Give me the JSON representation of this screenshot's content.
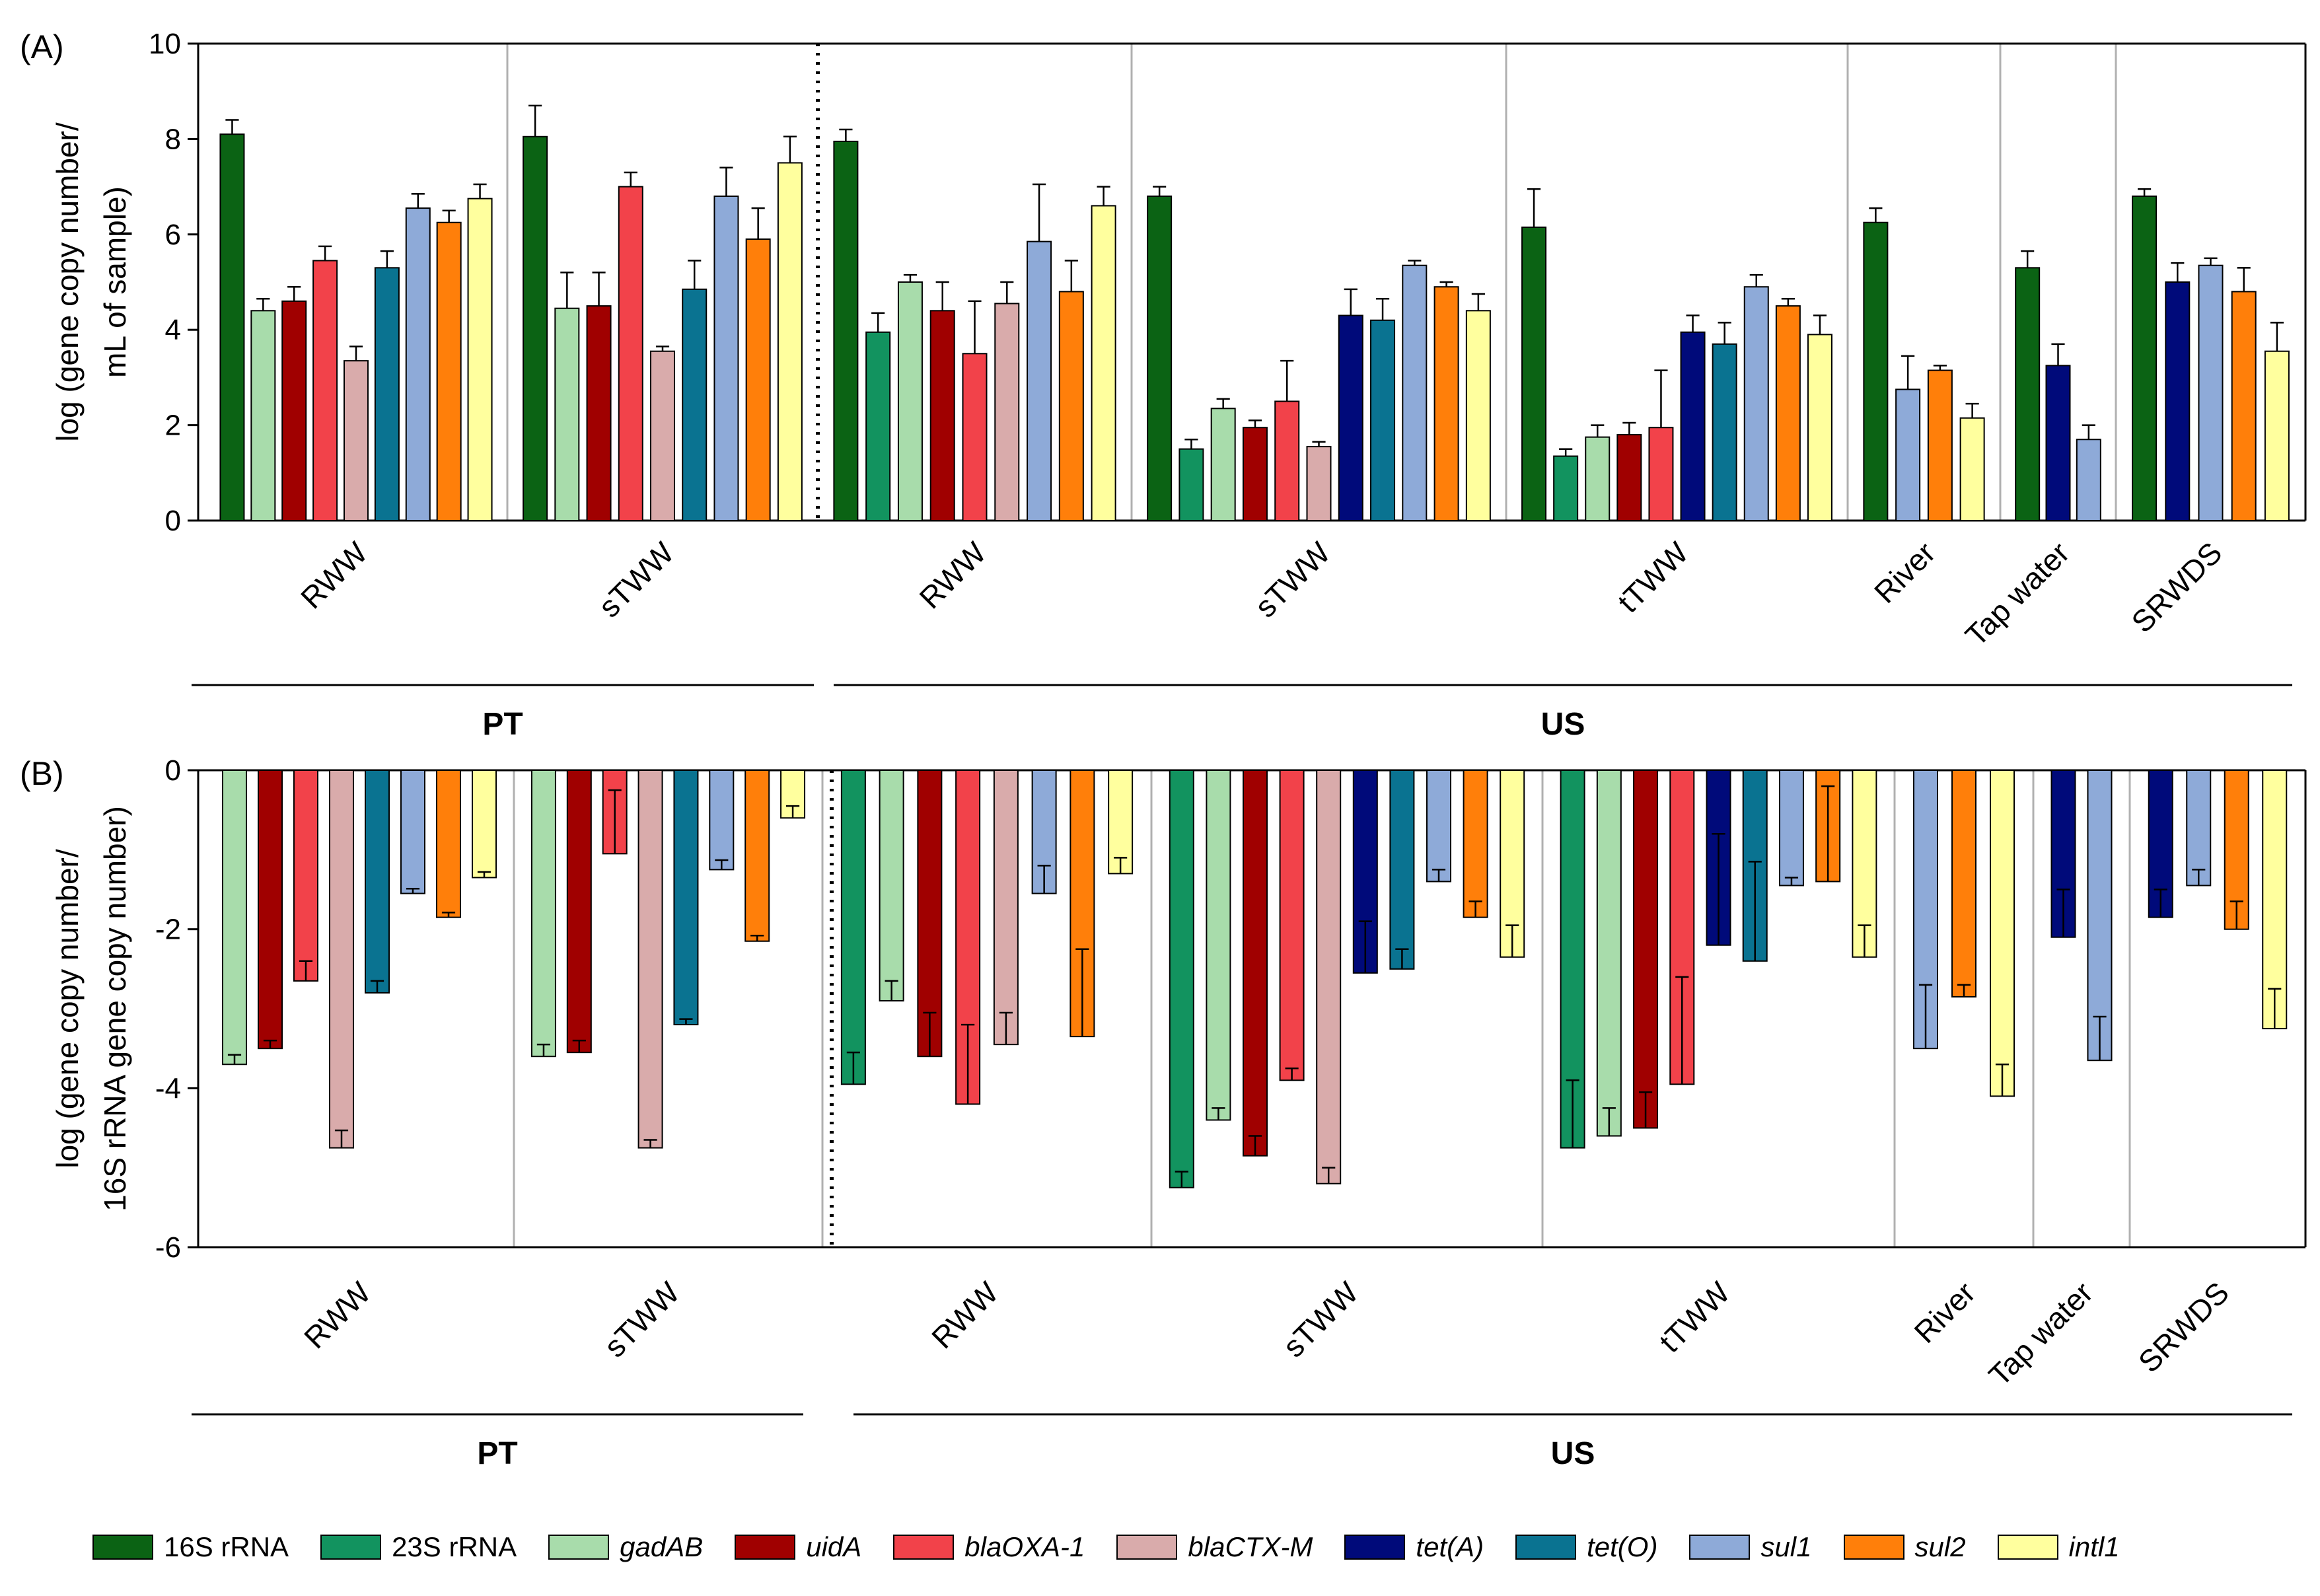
{
  "chart_data": [
    {
      "panel": "(A)",
      "type": "bar",
      "ylabel_lines": [
        "log (gene copy number/",
        "mL of sample)"
      ],
      "ylim": [
        0,
        10
      ],
      "yticks": [
        0,
        2,
        4,
        6,
        8,
        10
      ],
      "groups": [
        {
          "label": "RWW",
          "region": "PT",
          "bars": [
            {
              "gene": "16S rRNA",
              "value": 8.1,
              "err": 0.3
            },
            {
              "gene": "gadAB",
              "value": 4.4,
              "err": 0.25
            },
            {
              "gene": "uidA",
              "value": 4.6,
              "err": 0.3
            },
            {
              "gene": "blaOXA-1",
              "value": 5.45,
              "err": 0.3
            },
            {
              "gene": "blaCTX-M",
              "value": 3.35,
              "err": 0.3
            },
            {
              "gene": "tet(O)",
              "value": 5.3,
              "err": 0.35
            },
            {
              "gene": "sul1",
              "value": 6.55,
              "err": 0.3
            },
            {
              "gene": "sul2",
              "value": 6.25,
              "err": 0.25
            },
            {
              "gene": "intl1",
              "value": 6.75,
              "err": 0.3
            }
          ]
        },
        {
          "label": "sTWW",
          "region": "PT",
          "bars": [
            {
              "gene": "16S rRNA",
              "value": 8.05,
              "err": 0.65
            },
            {
              "gene": "gadAB",
              "value": 4.45,
              "err": 0.75
            },
            {
              "gene": "uidA",
              "value": 4.5,
              "err": 0.7
            },
            {
              "gene": "blaOXA-1",
              "value": 7.0,
              "err": 0.3
            },
            {
              "gene": "blaCTX-M",
              "value": 3.55,
              "err": 0.1
            },
            {
              "gene": "tet(O)",
              "value": 4.85,
              "err": 0.6
            },
            {
              "gene": "sul1",
              "value": 6.8,
              "err": 0.6
            },
            {
              "gene": "sul2",
              "value": 5.9,
              "err": 0.65
            },
            {
              "gene": "intl1",
              "value": 7.5,
              "err": 0.55
            }
          ]
        },
        {
          "label": "RWW",
          "region": "US",
          "bars": [
            {
              "gene": "16S rRNA",
              "value": 7.95,
              "err": 0.25
            },
            {
              "gene": "23S rRNA",
              "value": 3.95,
              "err": 0.4
            },
            {
              "gene": "gadAB",
              "value": 5.0,
              "err": 0.15
            },
            {
              "gene": "uidA",
              "value": 4.4,
              "err": 0.6
            },
            {
              "gene": "blaOXA-1",
              "value": 3.5,
              "err": 1.1
            },
            {
              "gene": "blaCTX-M",
              "value": 4.55,
              "err": 0.45
            },
            {
              "gene": "sul1",
              "value": 5.85,
              "err": 1.2
            },
            {
              "gene": "sul2",
              "value": 4.8,
              "err": 0.65
            },
            {
              "gene": "intl1",
              "value": 6.6,
              "err": 0.4
            }
          ]
        },
        {
          "label": "sTWW",
          "region": "US",
          "bars": [
            {
              "gene": "16S rRNA",
              "value": 6.8,
              "err": 0.2
            },
            {
              "gene": "23S rRNA",
              "value": 1.5,
              "err": 0.2
            },
            {
              "gene": "gadAB",
              "value": 2.35,
              "err": 0.2
            },
            {
              "gene": "uidA",
              "value": 1.95,
              "err": 0.15
            },
            {
              "gene": "blaOXA-1",
              "value": 2.5,
              "err": 0.85
            },
            {
              "gene": "blaCTX-M",
              "value": 1.55,
              "err": 0.1
            },
            {
              "gene": "tet(A)",
              "value": 4.3,
              "err": 0.55
            },
            {
              "gene": "tet(O)",
              "value": 4.2,
              "err": 0.45
            },
            {
              "gene": "sul1",
              "value": 5.35,
              "err": 0.1
            },
            {
              "gene": "sul2",
              "value": 4.9,
              "err": 0.1
            },
            {
              "gene": "intl1",
              "value": 4.4,
              "err": 0.35
            }
          ]
        },
        {
          "label": "tTWW",
          "region": "US",
          "bars": [
            {
              "gene": "16S rRNA",
              "value": 6.15,
              "err": 0.8
            },
            {
              "gene": "23S rRNA",
              "value": 1.35,
              "err": 0.15
            },
            {
              "gene": "gadAB",
              "value": 1.75,
              "err": 0.25
            },
            {
              "gene": "uidA",
              "value": 1.8,
              "err": 0.25
            },
            {
              "gene": "blaOXA-1",
              "value": 1.95,
              "err": 1.2
            },
            {
              "gene": "tet(A)",
              "value": 3.95,
              "err": 0.35
            },
            {
              "gene": "tet(O)",
              "value": 3.7,
              "err": 0.45
            },
            {
              "gene": "sul1",
              "value": 4.9,
              "err": 0.25
            },
            {
              "gene": "sul2",
              "value": 4.5,
              "err": 0.15
            },
            {
              "gene": "intl1",
              "value": 3.9,
              "err": 0.4
            }
          ]
        },
        {
          "label": "River",
          "region": "US",
          "bars": [
            {
              "gene": "16S rRNA",
              "value": 6.25,
              "err": 0.3
            },
            {
              "gene": "sul1",
              "value": 2.75,
              "err": 0.7
            },
            {
              "gene": "sul2",
              "value": 3.15,
              "err": 0.1
            },
            {
              "gene": "intl1",
              "value": 2.15,
              "err": 0.3
            }
          ]
        },
        {
          "label": "Tap water",
          "region": "US",
          "bars": [
            {
              "gene": "16S rRNA",
              "value": 5.3,
              "err": 0.35
            },
            {
              "gene": "tet(A)",
              "value": 3.25,
              "err": 0.45
            },
            {
              "gene": "sul1",
              "value": 1.7,
              "err": 0.3
            }
          ]
        },
        {
          "label": "SRWDS",
          "region": "US",
          "bars": [
            {
              "gene": "16S rRNA",
              "value": 6.8,
              "err": 0.15
            },
            {
              "gene": "tet(A)",
              "value": 5.0,
              "err": 0.4
            },
            {
              "gene": "sul1",
              "value": 5.35,
              "err": 0.15
            },
            {
              "gene": "sul2",
              "value": 4.8,
              "err": 0.5
            },
            {
              "gene": "intl1",
              "value": 3.55,
              "err": 0.6
            }
          ]
        }
      ]
    },
    {
      "panel": "(B)",
      "type": "bar",
      "ylabel_lines": [
        "log (gene copy number/",
        "16S rRNA gene copy number)"
      ],
      "ylim": [
        -6,
        0
      ],
      "yticks": [
        -6,
        -4,
        -2,
        0
      ],
      "groups": [
        {
          "label": "RWW",
          "region": "PT",
          "bars": [
            {
              "gene": "gadAB",
              "value": -3.7,
              "err": 0.12
            },
            {
              "gene": "uidA",
              "value": -3.5,
              "err": 0.1
            },
            {
              "gene": "blaOXA-1",
              "value": -2.65,
              "err": 0.25
            },
            {
              "gene": "blaCTX-M",
              "value": -4.75,
              "err": 0.22
            },
            {
              "gene": "tet(O)",
              "value": -2.8,
              "err": 0.15
            },
            {
              "gene": "sul1",
              "value": -1.55,
              "err": 0.06
            },
            {
              "gene": "sul2",
              "value": -1.85,
              "err": 0.06
            },
            {
              "gene": "intl1",
              "value": -1.35,
              "err": 0.07
            }
          ]
        },
        {
          "label": "sTWW",
          "region": "PT",
          "bars": [
            {
              "gene": "gadAB",
              "value": -3.6,
              "err": 0.15
            },
            {
              "gene": "uidA",
              "value": -3.55,
              "err": 0.15
            },
            {
              "gene": "blaOXA-1",
              "value": -1.05,
              "err": 0.8
            },
            {
              "gene": "blaCTX-M",
              "value": -4.75,
              "err": 0.1
            },
            {
              "gene": "tet(O)",
              "value": -3.2,
              "err": 0.07
            },
            {
              "gene": "sul1",
              "value": -1.25,
              "err": 0.12
            },
            {
              "gene": "sul2",
              "value": -2.15,
              "err": 0.07
            },
            {
              "gene": "intl1",
              "value": -0.6,
              "err": 0.15
            }
          ]
        },
        {
          "label": "RWW",
          "region": "US",
          "bars": [
            {
              "gene": "23S rRNA",
              "value": -3.95,
              "err": 0.4
            },
            {
              "gene": "gadAB",
              "value": -2.9,
              "err": 0.25
            },
            {
              "gene": "uidA",
              "value": -3.6,
              "err": 0.55
            },
            {
              "gene": "blaOXA-1",
              "value": -4.2,
              "err": 1.0
            },
            {
              "gene": "blaCTX-M",
              "value": -3.45,
              "err": 0.4
            },
            {
              "gene": "sul1",
              "value": -1.55,
              "err": 0.35
            },
            {
              "gene": "sul2",
              "value": -3.35,
              "err": 1.1
            },
            {
              "gene": "intl1",
              "value": -1.3,
              "err": 0.2
            }
          ]
        },
        {
          "label": "sTWW",
          "region": "US",
          "bars": [
            {
              "gene": "23S rRNA",
              "value": -5.25,
              "err": 0.2
            },
            {
              "gene": "gadAB",
              "value": -4.4,
              "err": 0.15
            },
            {
              "gene": "uidA",
              "value": -4.85,
              "err": 0.25
            },
            {
              "gene": "blaOXA-1",
              "value": -3.9,
              "err": 0.15
            },
            {
              "gene": "blaCTX-M",
              "value": -5.2,
              "err": 0.2
            },
            {
              "gene": "tet(A)",
              "value": -2.55,
              "err": 0.65
            },
            {
              "gene": "tet(O)",
              "value": -2.5,
              "err": 0.25
            },
            {
              "gene": "sul1",
              "value": -1.4,
              "err": 0.15
            },
            {
              "gene": "sul2",
              "value": -1.85,
              "err": 0.2
            },
            {
              "gene": "intl1",
              "value": -2.35,
              "err": 0.4
            }
          ]
        },
        {
          "label": "tTWW",
          "region": "US",
          "bars": [
            {
              "gene": "23S rRNA",
              "value": -4.75,
              "err": 0.85
            },
            {
              "gene": "gadAB",
              "value": -4.6,
              "err": 0.35
            },
            {
              "gene": "uidA",
              "value": -4.5,
              "err": 0.45
            },
            {
              "gene": "blaOXA-1",
              "value": -3.95,
              "err": 1.35
            },
            {
              "gene": "tet(A)",
              "value": -2.2,
              "err": 1.4
            },
            {
              "gene": "tet(O)",
              "value": -2.4,
              "err": 1.25
            },
            {
              "gene": "sul1",
              "value": -1.45,
              "err": 0.1
            },
            {
              "gene": "sul2",
              "value": -1.4,
              "err": 1.2
            },
            {
              "gene": "intl1",
              "value": -2.35,
              "err": 0.4
            }
          ]
        },
        {
          "label": "River",
          "region": "US",
          "bars": [
            {
              "gene": "sul1",
              "value": -3.5,
              "err": 0.8
            },
            {
              "gene": "sul2",
              "value": -2.85,
              "err": 0.15
            },
            {
              "gene": "intl1",
              "value": -4.1,
              "err": 0.4
            }
          ]
        },
        {
          "label": "Tap water",
          "region": "US",
          "bars": [
            {
              "gene": "tet(A)",
              "value": -2.1,
              "err": 0.6
            },
            {
              "gene": "sul1",
              "value": -3.65,
              "err": 0.55
            }
          ]
        },
        {
          "label": "SRWDS",
          "region": "US",
          "bars": [
            {
              "gene": "tet(A)",
              "value": -1.85,
              "err": 0.35
            },
            {
              "gene": "sul1",
              "value": -1.45,
              "err": 0.2
            },
            {
              "gene": "sul2",
              "value": -2.0,
              "err": 0.35
            },
            {
              "gene": "intl1",
              "value": -3.25,
              "err": 0.5
            }
          ]
        }
      ]
    }
  ],
  "regions": [
    "PT",
    "US"
  ],
  "legend": [
    {
      "gene": "16S rRNA",
      "label": "16S rRNA",
      "color": "#0b6314",
      "italic": false
    },
    {
      "gene": "23S rRNA",
      "label": "23S rRNA",
      "color": "#12935f",
      "italic": false
    },
    {
      "gene": "gadAB",
      "label": "gadAB",
      "color": "#a8dcab",
      "italic": true
    },
    {
      "gene": "uidA",
      "label": "uidA",
      "color": "#a00000",
      "italic": true
    },
    {
      "gene": "blaOXA-1",
      "label": "blaOXA-1",
      "color": "#f2424a",
      "italic": true
    },
    {
      "gene": "blaCTX-M",
      "label": "blaCTX-M",
      "color": "#d9abab",
      "italic": true
    },
    {
      "gene": "tet(A)",
      "label": "tet(A)",
      "color": "#000a7a",
      "italic": true
    },
    {
      "gene": "tet(O)",
      "label": "tet(O)",
      "color": "#0a7391",
      "italic": true
    },
    {
      "gene": "sul1",
      "label": "sul1",
      "color": "#8eaad8",
      "italic": true
    },
    {
      "gene": "sul2",
      "label": "sul2",
      "color": "#ff7f0a",
      "italic": true
    },
    {
      "gene": "intl1",
      "label": "intl1",
      "color": "#ffff9e",
      "italic": true
    }
  ]
}
